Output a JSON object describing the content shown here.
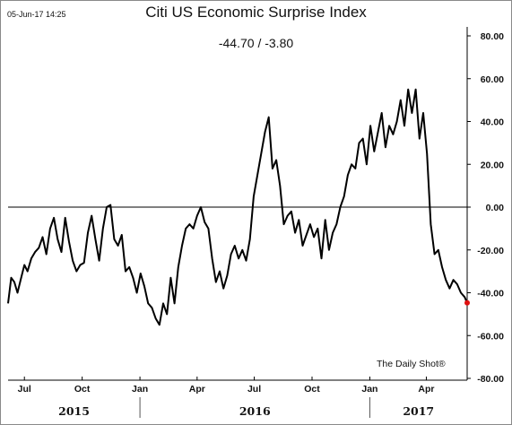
{
  "header": {
    "timestamp": "05-Jun-17 14:25",
    "title": "Citi US Economic Surprise Index",
    "subtitle": "-44.70 / -3.80"
  },
  "source": "The Daily Shot®",
  "colors": {
    "line": "#000000",
    "last_point": "#e01010",
    "zero_line": "#000000",
    "axis": "#000000"
  },
  "chart_data": {
    "type": "line",
    "title": "Citi US Economic Surprise Index",
    "ylim": [
      -80,
      80
    ],
    "yticks": [
      80,
      60,
      40,
      20,
      0,
      -20,
      -40,
      -60,
      -80
    ],
    "ytick_labels": [
      "80.00",
      "60.00",
      "40.00",
      "20.00",
      "0.00",
      "-20.00",
      "-40.00",
      "-60.00",
      "-80.00"
    ],
    "xlim": [
      "2015-06-05",
      "2017-06-05"
    ],
    "x_ticks": [
      {
        "date": "2015-07-01",
        "label": "Jul"
      },
      {
        "date": "2015-10-01",
        "label": "Oct"
      },
      {
        "date": "2016-01-01",
        "label": "Jan"
      },
      {
        "date": "2016-04-01",
        "label": "Apr"
      },
      {
        "date": "2016-07-01",
        "label": "Jul"
      },
      {
        "date": "2016-10-01",
        "label": "Oct"
      },
      {
        "date": "2017-01-01",
        "label": "Jan"
      },
      {
        "date": "2017-04-01",
        "label": "Apr"
      }
    ],
    "years": [
      {
        "label": "2015",
        "start": "2015-06-05",
        "end": "2016-01-01"
      },
      {
        "label": "2016",
        "start": "2016-01-01",
        "end": "2017-01-01"
      },
      {
        "label": "2017",
        "start": "2017-01-01",
        "end": "2017-06-05"
      }
    ],
    "zero_line": true,
    "grid": false,
    "last_value": -44.7,
    "series": [
      {
        "x": [
          "2015-06-05",
          "2015-06-10",
          "2015-06-15",
          "2015-06-20",
          "2015-06-25",
          "2015-07-01",
          "2015-07-06",
          "2015-07-12",
          "2015-07-18",
          "2015-07-24",
          "2015-07-30",
          "2015-08-05",
          "2015-08-11",
          "2015-08-17",
          "2015-08-23",
          "2015-08-29",
          "2015-09-04",
          "2015-09-10",
          "2015-09-16",
          "2015-09-22",
          "2015-09-28",
          "2015-10-04",
          "2015-10-10",
          "2015-10-16",
          "2015-10-22",
          "2015-10-28",
          "2015-11-03",
          "2015-11-09",
          "2015-11-15",
          "2015-11-21",
          "2015-11-27",
          "2015-12-03",
          "2015-12-09",
          "2015-12-15",
          "2015-12-21",
          "2015-12-27",
          "2016-01-02",
          "2016-01-08",
          "2016-01-14",
          "2016-01-20",
          "2016-01-26",
          "2016-02-01",
          "2016-02-07",
          "2016-02-13",
          "2016-02-19",
          "2016-02-25",
          "2016-03-02",
          "2016-03-08",
          "2016-03-14",
          "2016-03-20",
          "2016-03-26",
          "2016-04-01",
          "2016-04-07",
          "2016-04-13",
          "2016-04-19",
          "2016-04-25",
          "2016-05-01",
          "2016-05-07",
          "2016-05-13",
          "2016-05-19",
          "2016-05-25",
          "2016-05-31",
          "2016-06-06",
          "2016-06-12",
          "2016-06-18",
          "2016-06-24",
          "2016-06-30",
          "2016-07-06",
          "2016-07-12",
          "2016-07-18",
          "2016-07-24",
          "2016-07-30",
          "2016-08-05",
          "2016-08-11",
          "2016-08-17",
          "2016-08-23",
          "2016-08-29",
          "2016-09-04",
          "2016-09-10",
          "2016-09-16",
          "2016-09-22",
          "2016-09-28",
          "2016-10-04",
          "2016-10-10",
          "2016-10-16",
          "2016-10-22",
          "2016-10-28",
          "2016-11-03",
          "2016-11-09",
          "2016-11-15",
          "2016-11-21",
          "2016-11-27",
          "2016-12-03",
          "2016-12-09",
          "2016-12-15",
          "2016-12-21",
          "2016-12-27",
          "2017-01-02",
          "2017-01-08",
          "2017-01-14",
          "2017-01-20",
          "2017-01-26",
          "2017-02-01",
          "2017-02-07",
          "2017-02-13",
          "2017-02-19",
          "2017-02-25",
          "2017-03-03",
          "2017-03-09",
          "2017-03-15",
          "2017-03-21",
          "2017-03-27",
          "2017-04-02",
          "2017-04-08",
          "2017-04-14",
          "2017-04-20",
          "2017-04-26",
          "2017-05-02",
          "2017-05-08",
          "2017-05-14",
          "2017-05-20",
          "2017-05-26",
          "2017-06-01",
          "2017-06-05"
        ],
        "y": [
          -45,
          -33,
          -35,
          -40,
          -34,
          -27,
          -30,
          -24,
          -21,
          -19,
          -14,
          -22,
          -10,
          -5,
          -15,
          -21,
          -5,
          -16,
          -25,
          -30,
          -27,
          -26,
          -12,
          -4,
          -15,
          -25,
          -10,
          0,
          1,
          -15,
          -18,
          -13,
          -30,
          -28,
          -33,
          -40,
          -31,
          -37,
          -45,
          -47,
          -52,
          -55,
          -45,
          -50,
          -33,
          -45,
          -28,
          -18,
          -10,
          -8,
          -10,
          -4,
          0,
          -7,
          -10,
          -24,
          -35,
          -30,
          -38,
          -32,
          -22,
          -18,
          -24,
          -20,
          -25,
          -15,
          5,
          15,
          25,
          35,
          42,
          18,
          22,
          10,
          -8,
          -4,
          -2,
          -12,
          -6,
          -18,
          -13,
          -8,
          -14,
          -10,
          -24,
          -6,
          -20,
          -12,
          -8,
          0,
          5,
          15,
          20,
          18,
          30,
          32,
          20,
          38,
          26,
          35,
          44,
          28,
          38,
          34,
          40,
          50,
          38,
          55,
          44,
          55,
          32,
          44,
          25,
          -8,
          -22,
          -20,
          -28,
          -34,
          -38,
          -34,
          -36,
          -40,
          -42,
          -44.7
        ]
      }
    ]
  }
}
